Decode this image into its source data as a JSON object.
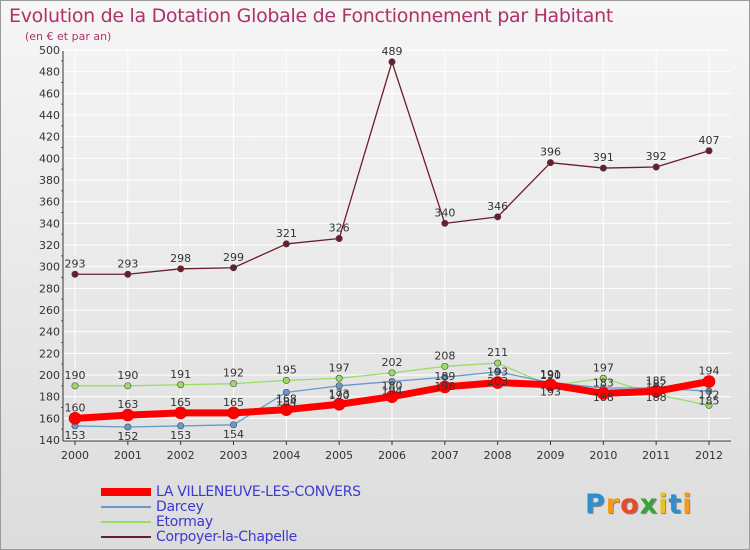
{
  "chart_data": {
    "type": "line",
    "title": "Evolution de la Dotation Globale de Fonctionnement par Habitant",
    "subtitle": "(en € et par an)",
    "xlabel": "",
    "ylabel": "",
    "ylim": [
      140,
      500
    ],
    "yticks": [
      140,
      160,
      180,
      200,
      220,
      240,
      260,
      280,
      300,
      320,
      340,
      360,
      380,
      400,
      420,
      440,
      460,
      480,
      500
    ],
    "categories": [
      "2000",
      "2001",
      "2002",
      "2003",
      "2004",
      "2005",
      "2006",
      "2007",
      "2008",
      "2009",
      "2010",
      "2011",
      "2012"
    ],
    "series": [
      {
        "name": "LA VILLENEUVE-LES-CONVERS",
        "color": "#ff0000",
        "values": [
          160,
          163,
          165,
          165,
          168,
          173,
          180,
          189,
          193,
          191,
          183,
          185,
          194
        ]
      },
      {
        "name": "Darcey",
        "color": "#6699cc",
        "values": [
          153,
          152,
          153,
          154,
          184,
          190,
          194,
          198,
          203,
          193,
          188,
          188,
          185
        ]
      },
      {
        "name": "Etormay",
        "color": "#99dd66",
        "values": [
          190,
          190,
          191,
          192,
          195,
          197,
          202,
          208,
          211,
          190,
          197,
          182,
          172
        ]
      },
      {
        "name": "Corpoyer-la-Chapelle",
        "color": "#6b1e2a",
        "values": [
          293,
          293,
          298,
          299,
          321,
          326,
          489,
          340,
          346,
          396,
          391,
          392,
          407
        ]
      }
    ],
    "legend_position": "bottom-left"
  },
  "logo": {
    "letters": [
      "P",
      "r",
      "o",
      "x",
      "i",
      "t",
      "i"
    ]
  }
}
